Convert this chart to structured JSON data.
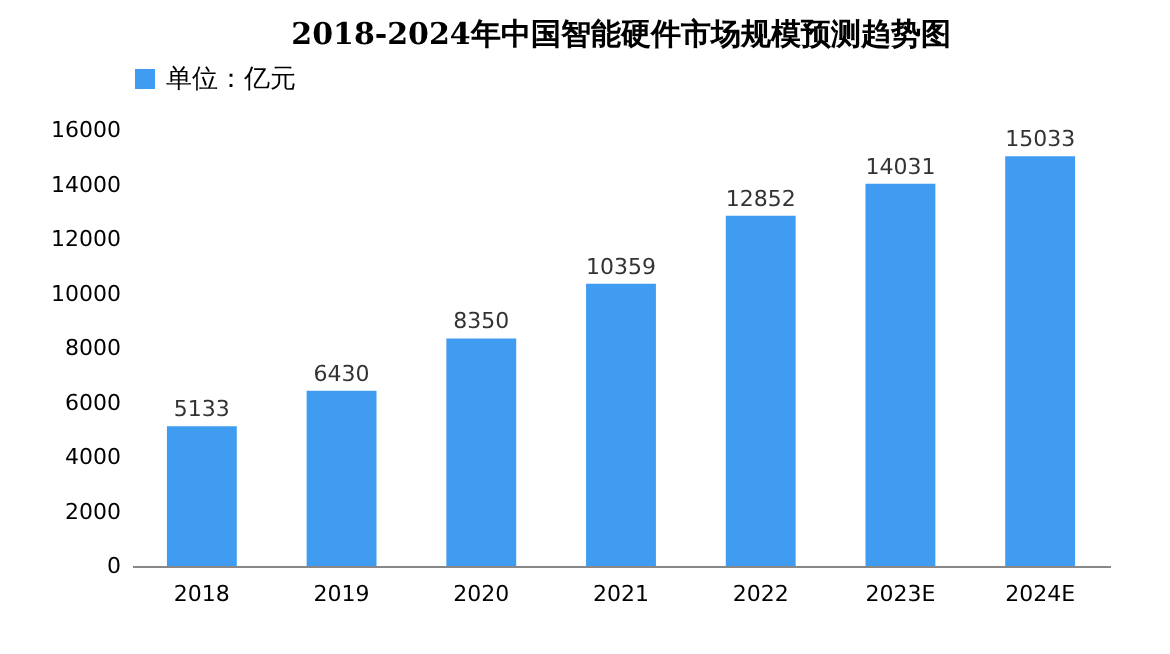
{
  "chart_data": {
    "type": "bar",
    "title": "2018-2024年中国智能硬件市场规模预测趋势图",
    "categories": [
      "2018",
      "2019",
      "2020",
      "2021",
      "2022",
      "2023E",
      "2024E"
    ],
    "series": [
      {
        "name": "单位：亿元",
        "color": "#3f9cf0",
        "values": [
          5133,
          6430,
          8350,
          10359,
          12852,
          14031,
          15033
        ]
      }
    ],
    "ylim": [
      0,
      16000
    ],
    "yticks": [
      0,
      2000,
      4000,
      6000,
      8000,
      10000,
      12000,
      14000,
      16000
    ],
    "grid": false,
    "legend": "top",
    "data_labels": true
  }
}
